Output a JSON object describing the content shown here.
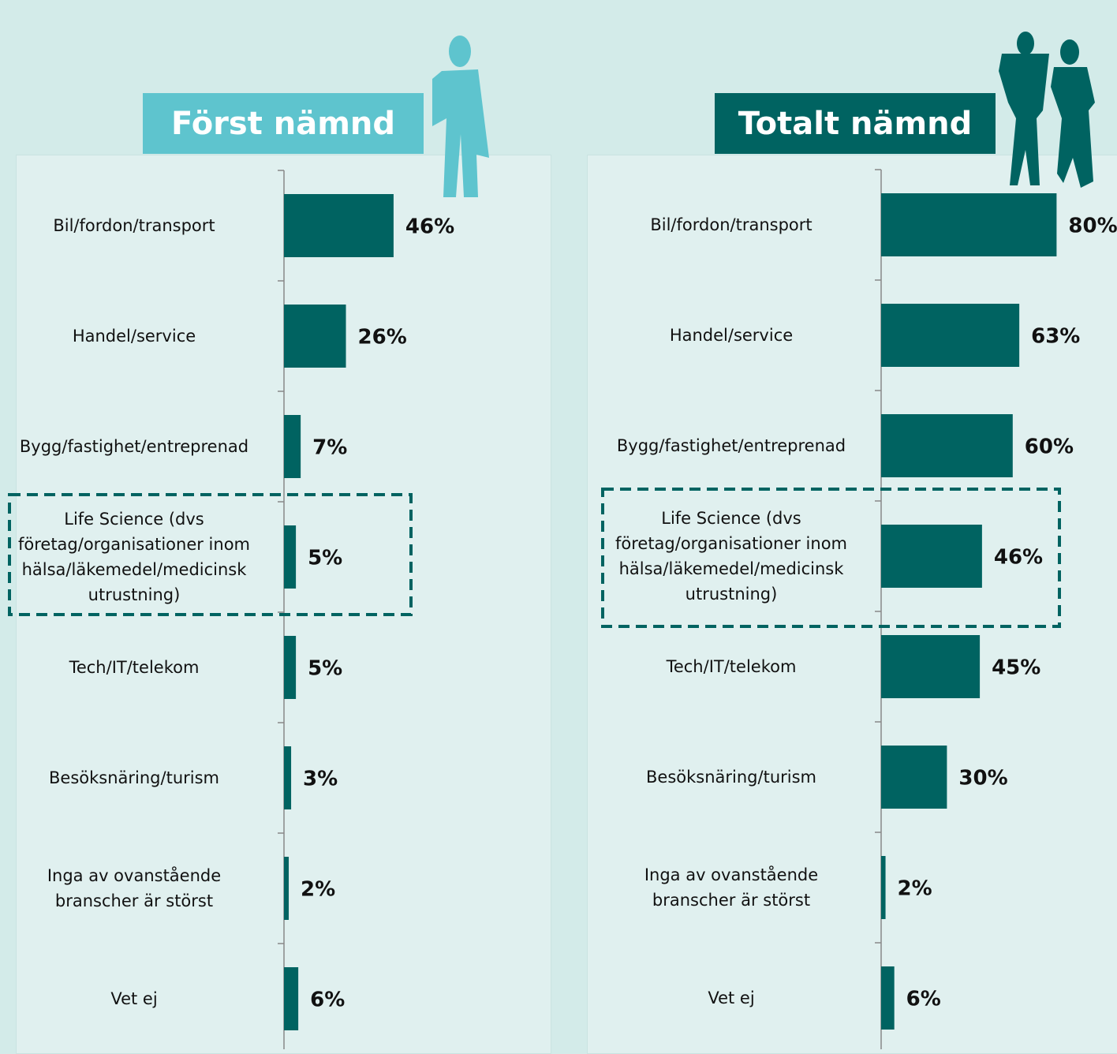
{
  "chart_data": [
    {
      "type": "bar",
      "orientation": "horizontal",
      "title": "Först nämnd",
      "title_color": "#5ec4ce",
      "color": "#006361",
      "categories": [
        "Bil/fordon/transport",
        "Handel/service",
        "Bygg/fastighet/entreprenad",
        "Life Science (dvs företag/organisationer inom hälsa/läkemedel/medicinsk utrustning)",
        "Tech/IT/telekom",
        "Besöksnäring/turism",
        "Inga av ovanstående branscher är störst",
        "Vet ej"
      ],
      "values": [
        46,
        26,
        7,
        5,
        5,
        3,
        2,
        6
      ],
      "value_labels": [
        "46%",
        "26%",
        "7%",
        "5%",
        "5%",
        "3%",
        "2%",
        "6%"
      ],
      "xlim": [
        0,
        100
      ],
      "highlight_index": 3
    },
    {
      "type": "bar",
      "orientation": "horizontal",
      "title": "Totalt nämnd",
      "title_color": "#006361",
      "color": "#006361",
      "categories": [
        "Bil/fordon/transport",
        "Handel/service",
        "Bygg/fastighet/entreprenad",
        "Life Science (dvs företag/organisationer inom hälsa/läkemedel/medicinsk utrustning)",
        "Tech/IT/telekom",
        "Besöksnäring/turism",
        "Inga av ovanstående branscher är störst",
        "Vet ej"
      ],
      "values": [
        80,
        63,
        60,
        46,
        45,
        30,
        2,
        6
      ],
      "value_labels": [
        "80%",
        "63%",
        "60%",
        "46%",
        "45%",
        "30%",
        "2%",
        "6%"
      ],
      "xlim": [
        0,
        100
      ],
      "highlight_index": 3
    }
  ]
}
